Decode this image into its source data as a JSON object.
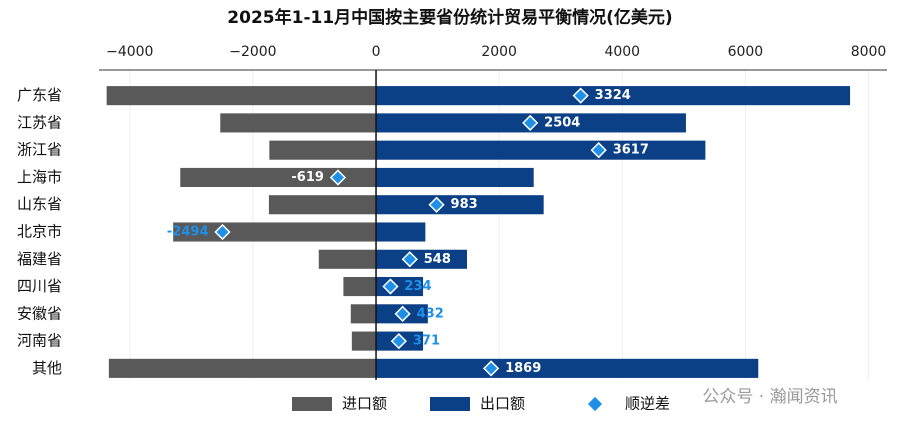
{
  "chart_data": {
    "type": "diverging-bar",
    "title": "2025年1-11月中国按主要省份统计贸易平衡情况(亿美元)",
    "categories": [
      "广东省",
      "江苏省",
      "浙江省",
      "上海市",
      "山东省",
      "北京市",
      "福建省",
      "四川省",
      "安徽省",
      "河南省",
      "其他"
    ],
    "series": [
      {
        "name": "进口额",
        "color": "#595959",
        "values": [
          -4376,
          -2530,
          -1733,
          -3180,
          -1740,
          -3295,
          -930,
          -530,
          -410,
          -393,
          -4340
        ]
      },
      {
        "name": "出口额",
        "color": "#0b3f86",
        "values": [
          7700,
          5034,
          5350,
          2561,
          2723,
          801,
          1478,
          764,
          842,
          764,
          6209
        ]
      },
      {
        "name": "顺逆差",
        "color": "#1e90e8",
        "values": [
          3324,
          2504,
          3617,
          -619,
          983,
          -2494,
          548,
          234,
          432,
          371,
          1869
        ]
      }
    ],
    "xlim": [
      -4500,
      8300
    ],
    "xticks": [
      {
        "value": -4000,
        "label": "−4000"
      },
      {
        "value": -2000,
        "label": "−2000"
      },
      0,
      2000,
      4000,
      6000,
      8000
    ],
    "grid": true,
    "legend": "bottom",
    "watermark": "公众号 · 瀚闻资讯"
  }
}
